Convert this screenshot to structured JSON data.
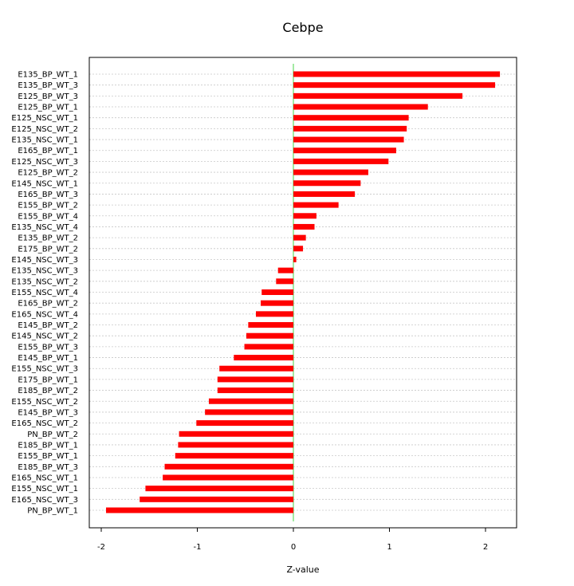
{
  "chart_data": {
    "type": "bar",
    "orientation": "horizontal",
    "title": "Cebpe",
    "xlabel": "Z-value",
    "ylabel": "",
    "xlim": [
      -2.0,
      2.3
    ],
    "xticks": [
      -2,
      -1,
      0,
      1,
      2
    ],
    "grid": true,
    "colors": {
      "bar": "#ff0000",
      "zero_line": "#66dd66",
      "grid": "#c8c8c8"
    },
    "categories": [
      "E135_BP_WT_1",
      "E135_BP_WT_3",
      "E125_BP_WT_3",
      "E125_BP_WT_1",
      "E125_NSC_WT_1",
      "E125_NSC_WT_2",
      "E135_NSC_WT_1",
      "E165_BP_WT_1",
      "E125_NSC_WT_3",
      "E125_BP_WT_2",
      "E145_NSC_WT_1",
      "E165_BP_WT_3",
      "E155_BP_WT_2",
      "E155_BP_WT_4",
      "E135_NSC_WT_4",
      "E135_BP_WT_2",
      "E175_BP_WT_2",
      "E145_NSC_WT_3",
      "E135_NSC_WT_3",
      "E135_NSC_WT_2",
      "E155_NSC_WT_4",
      "E165_BP_WT_2",
      "E165_NSC_WT_4",
      "E145_BP_WT_2",
      "E145_NSC_WT_2",
      "E155_BP_WT_3",
      "E145_BP_WT_1",
      "E155_NSC_WT_3",
      "E175_BP_WT_1",
      "E185_BP_WT_2",
      "E155_NSC_WT_2",
      "E145_BP_WT_3",
      "E165_NSC_WT_2",
      "PN_BP_WT_2",
      "E185_BP_WT_1",
      "E155_BP_WT_1",
      "E185_BP_WT_3",
      "E165_NSC_WT_1",
      "E155_NSC_WT_1",
      "E165_NSC_WT_3",
      "PN_BP_WT_1"
    ],
    "values": [
      2.15,
      2.1,
      1.76,
      1.4,
      1.2,
      1.18,
      1.15,
      1.07,
      0.99,
      0.78,
      0.7,
      0.64,
      0.47,
      0.24,
      0.22,
      0.13,
      0.1,
      0.03,
      -0.16,
      -0.18,
      -0.33,
      -0.34,
      -0.39,
      -0.47,
      -0.49,
      -0.51,
      -0.62,
      -0.77,
      -0.79,
      -0.79,
      -0.88,
      -0.92,
      -1.01,
      -1.19,
      -1.2,
      -1.23,
      -1.34,
      -1.36,
      -1.54,
      -1.6,
      -1.95
    ]
  }
}
